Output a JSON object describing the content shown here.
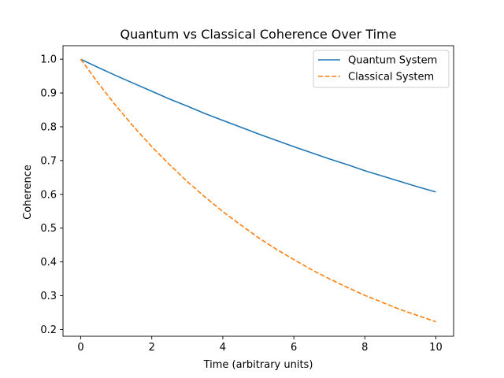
{
  "chart_data": {
    "type": "line",
    "title": "Quantum vs Classical Coherence Over Time",
    "xlabel": "Time (arbitrary units)",
    "ylabel": "Coherence",
    "xlim": [
      -0.5,
      10.5
    ],
    "ylim": [
      0.18,
      1.04
    ],
    "xticks": [
      0,
      2,
      4,
      6,
      8,
      10
    ],
    "yticks": [
      0.2,
      0.3,
      0.4,
      0.5,
      0.6,
      0.7,
      0.8,
      0.9,
      1.0
    ],
    "ytick_labels": [
      "0.2",
      "0.3",
      "0.4",
      "0.5",
      "0.6",
      "0.7",
      "0.8",
      "0.9",
      "1.0"
    ],
    "xtick_labels": [
      "0",
      "2",
      "4",
      "6",
      "8",
      "10"
    ],
    "grid": false,
    "legend_position": "top-right",
    "x": [
      0,
      0.5,
      1,
      1.5,
      2,
      2.5,
      3,
      3.5,
      4,
      4.5,
      5,
      5.5,
      6,
      6.5,
      7,
      7.5,
      8,
      8.5,
      9,
      9.5,
      10
    ],
    "series": [
      {
        "name": "Quantum System",
        "color": "#1f77b4",
        "style": "solid",
        "values": [
          1.0,
          0.975,
          0.951,
          0.928,
          0.905,
          0.882,
          0.861,
          0.839,
          0.819,
          0.799,
          0.779,
          0.76,
          0.741,
          0.723,
          0.705,
          0.688,
          0.67,
          0.654,
          0.638,
          0.622,
          0.607
        ]
      },
      {
        "name": "Classical System",
        "color": "#ff7f0e",
        "style": "dashed",
        "values": [
          1.0,
          0.928,
          0.861,
          0.799,
          0.741,
          0.688,
          0.638,
          0.592,
          0.549,
          0.51,
          0.472,
          0.438,
          0.407,
          0.377,
          0.35,
          0.325,
          0.301,
          0.28,
          0.259,
          0.241,
          0.223
        ]
      }
    ]
  }
}
